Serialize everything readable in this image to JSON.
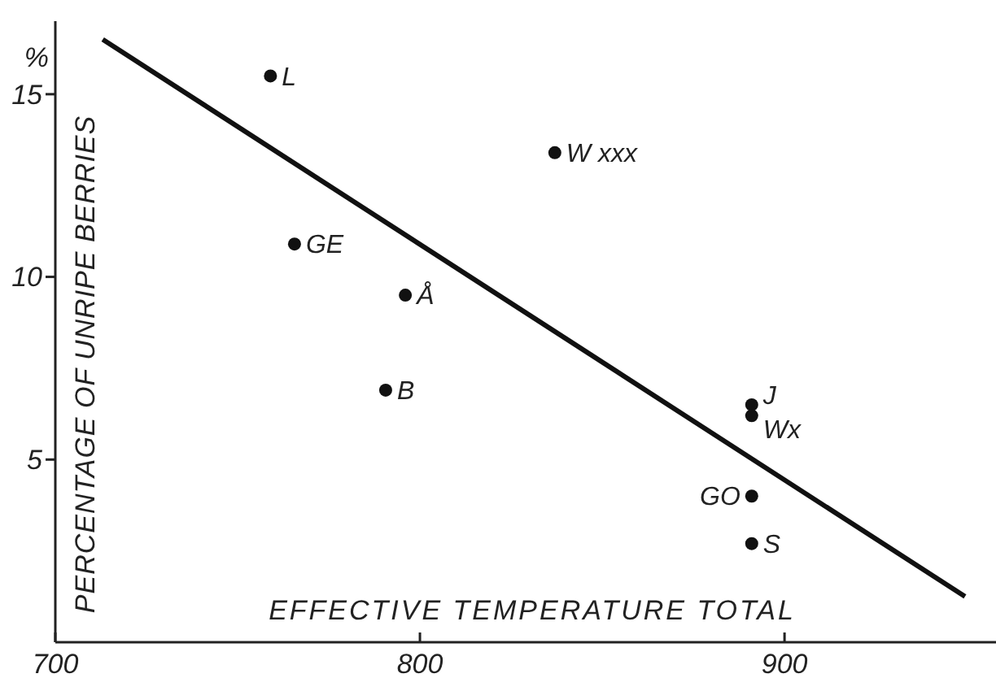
{
  "chart_data": {
    "type": "scatter",
    "xlabel": "EFFECTIVE TEMPERATURE TOTAL",
    "ylabel": "PERCENTAGE OF UNRIPE BERRIES",
    "x": [
      759,
      765.6,
      796,
      790.6,
      837,
      891,
      891,
      891,
      891
    ],
    "series": [
      {
        "color": "#111111",
        "values": [
          15.5,
          10.9,
          9.5,
          6.9,
          13.4,
          6.5,
          6.2,
          4.0,
          2.7
        ]
      },
      {
        "type": "line",
        "color": "#111111",
        "marker": "none",
        "x": [
          713,
          949.5
        ],
        "values": [
          16.5,
          1.25
        ]
      }
    ],
    "marker": "circle",
    "grid": false,
    "xlim": [
      700,
      958
    ],
    "ylim": [
      0,
      17
    ],
    "xticks": [
      700,
      800,
      900
    ],
    "yticks": [
      5,
      10,
      15
    ],
    "annotations": [
      "%",
      {
        "text": "L",
        "x": 759,
        "y": 15.5
      },
      {
        "text": "GE",
        "x": 765.6,
        "y": 10.9
      },
      {
        "text": "Å",
        "x": 796,
        "y": 9.5
      },
      {
        "text": "B",
        "x": 790.6,
        "y": 6.9
      },
      {
        "text": "W xxx",
        "x": 837,
        "y": 13.4
      },
      {
        "text": "J",
        "x": 891,
        "y": 6.5
      },
      {
        "text": "Wx",
        "x": 891,
        "y": 6.2
      },
      {
        "text": "GO",
        "x": 891,
        "y": 4.0
      },
      {
        "text": "S",
        "x": 891,
        "y": 2.7
      }
    ]
  }
}
